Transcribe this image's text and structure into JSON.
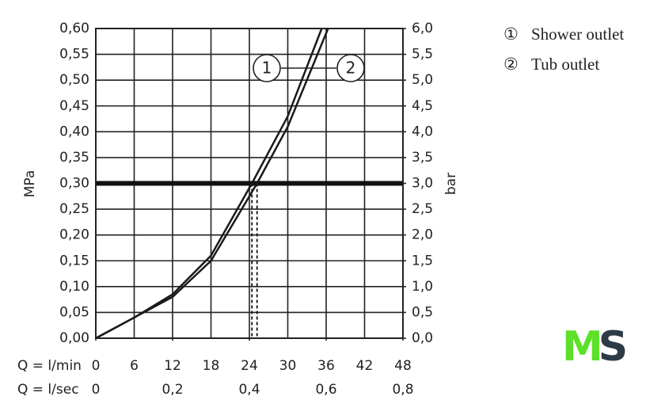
{
  "chart_data": {
    "type": "line",
    "x_label": "Q = l/min",
    "x2_label": "Q = l/sec",
    "y_label": "MPa",
    "y2_label": "bar",
    "xlim": [
      0,
      48
    ],
    "xticks": [
      0,
      6,
      12,
      18,
      24,
      30,
      36,
      42,
      48
    ],
    "x2lim": [
      0,
      0.8
    ],
    "x2ticks": [
      0,
      {
        "value": 0.2,
        "label": "0,2"
      },
      {
        "value": 0.4,
        "label": "0,4"
      },
      {
        "value": 0.6,
        "label": "0,6"
      },
      {
        "value": 0.8,
        "label": "0,8"
      }
    ],
    "ylim": [
      0,
      0.6
    ],
    "yticks": [
      {
        "value": 0,
        "label": "0,00"
      },
      {
        "value": 0.05,
        "label": "0,05"
      },
      {
        "value": 0.1,
        "label": "0,10"
      },
      {
        "value": 0.15,
        "label": "0,15"
      },
      {
        "value": 0.2,
        "label": "0,20"
      },
      {
        "value": 0.25,
        "label": "0,25"
      },
      {
        "value": 0.3,
        "label": "0,30"
      },
      {
        "value": 0.35,
        "label": "0,35"
      },
      {
        "value": 0.4,
        "label": "0,40"
      },
      {
        "value": 0.45,
        "label": "0,45"
      },
      {
        "value": 0.5,
        "label": "0,50"
      },
      {
        "value": 0.55,
        "label": "0,55"
      },
      {
        "value": 0.6,
        "label": "0,60"
      }
    ],
    "y2lim": [
      0,
      6
    ],
    "y2ticks": [
      {
        "value": 0,
        "label": "0,0"
      },
      {
        "value": 0.5,
        "label": "0,5"
      },
      {
        "value": 1,
        "label": "1,0"
      },
      {
        "value": 1.5,
        "label": "1,5"
      },
      {
        "value": 2,
        "label": "2,0"
      },
      {
        "value": 2.5,
        "label": "2,5"
      },
      {
        "value": 3,
        "label": "3,0"
      },
      {
        "value": 3.5,
        "label": "3,5"
      },
      {
        "value": 4,
        "label": "4,0"
      },
      {
        "value": 4.5,
        "label": "4,5"
      },
      {
        "value": 5,
        "label": "5,0"
      },
      {
        "value": 5.5,
        "label": "5,5"
      },
      {
        "value": 6,
        "label": "6,0"
      }
    ],
    "grid": true,
    "reference_line": 0.3,
    "series": [
      {
        "name": "Shower outlet",
        "symbol": "①",
        "label": "1",
        "color": "#1a1a1a",
        "operating_point": 24.4,
        "x": [
          0,
          6,
          12,
          18,
          24.4,
          30,
          35.3
        ],
        "values": [
          0,
          0.04,
          0.085,
          0.16,
          0.3,
          0.43,
          0.6
        ]
      },
      {
        "name": "Tub outlet",
        "symbol": "②",
        "label": "2",
        "color": "#1a1a1a",
        "operating_point": 25.2,
        "x": [
          0,
          6,
          12,
          18,
          25.2,
          30,
          36.3
        ],
        "values": [
          0,
          0.04,
          0.08,
          0.15,
          0.3,
          0.41,
          0.6
        ]
      }
    ],
    "logo": [
      "M",
      "S"
    ]
  }
}
